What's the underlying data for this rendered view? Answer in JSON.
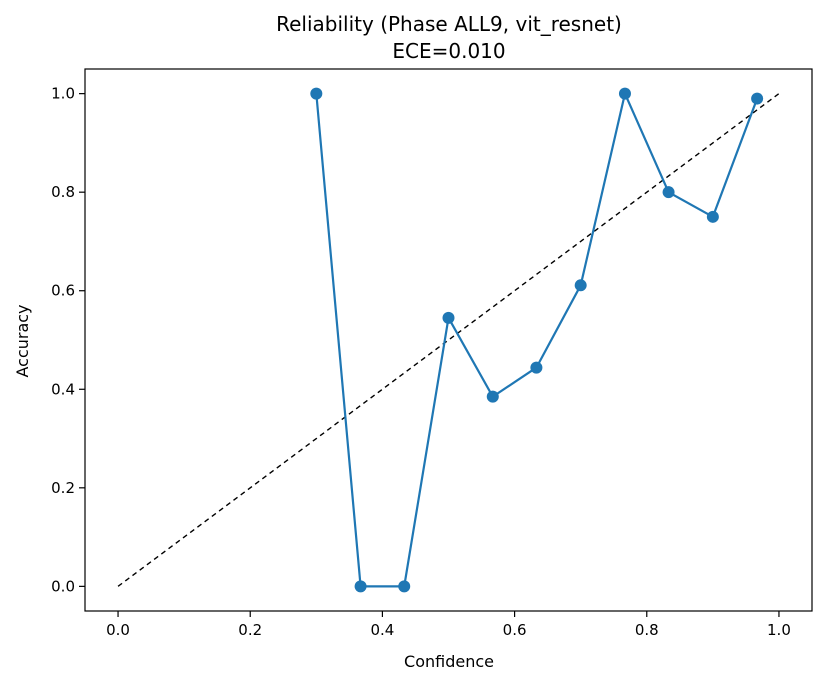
{
  "chart_data": {
    "type": "line",
    "title": "Reliability (Phase ALL9, vit_resnet)",
    "subtitle": "ECE=0.010",
    "xlabel": "Confidence",
    "ylabel": "Accuracy",
    "xlim": [
      -0.05,
      1.05
    ],
    "ylim": [
      -0.05,
      1.05
    ],
    "x_ticks": [
      0.0,
      0.2,
      0.4,
      0.6,
      0.8,
      1.0
    ],
    "x_tick_labels": [
      "0.0",
      "0.2",
      "0.4",
      "0.6",
      "0.8",
      "1.0"
    ],
    "y_ticks": [
      0.0,
      0.2,
      0.4,
      0.6,
      0.8,
      1.0
    ],
    "y_tick_labels": [
      "0.0",
      "0.2",
      "0.4",
      "0.6",
      "0.8",
      "1.0"
    ],
    "grid": false,
    "legend": "none",
    "series": [
      {
        "style": "line-with-markers",
        "color": "#1f77b4",
        "x": [
          0.3,
          0.367,
          0.433,
          0.5,
          0.567,
          0.633,
          0.7,
          0.767,
          0.833,
          0.9,
          0.967
        ],
        "y": [
          1.0,
          0.0,
          0.0,
          0.545,
          0.385,
          0.444,
          0.611,
          1.0,
          0.8,
          0.75,
          0.99
        ]
      }
    ],
    "reference_line": {
      "style": "dashed",
      "color": "#000000",
      "x": [
        0.0,
        1.0
      ],
      "y": [
        0.0,
        1.0
      ]
    }
  }
}
